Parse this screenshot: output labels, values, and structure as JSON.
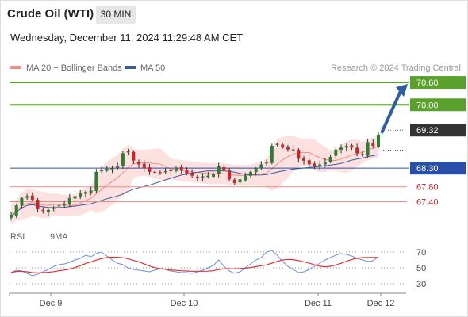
{
  "header": {
    "title": "Crude Oil (WTI)",
    "timeframe": "30 MIN",
    "datetime": "Wednesday, December 11, 2024 11:29:48 AM CET"
  },
  "legend": {
    "ma20_label": "MA 20 + Bollinger Bands",
    "ma50_label": "MA 50",
    "credit": "Research © 2024 Trading Central",
    "rsi_label": "RSI",
    "rsi_ma_label": "9MA"
  },
  "colors": {
    "up_candle": "#2e7d32",
    "down_candle": "#c62828",
    "bollinger_fill": "#fcd7d7",
    "ma20": "#f28b82",
    "ma50": "#3d5a99",
    "resistance": "#5aa02c",
    "support": "#2a4fa8",
    "support_light": "#f28b82",
    "current_price": "#333333",
    "forecast_arrow": "#2f5d9e",
    "rsi": "#6a8fe0",
    "rsi_ma": "#e03030"
  },
  "chart_data": {
    "type": "candlestick",
    "instrument": "Crude Oil (WTI)",
    "interval": "30 MIN",
    "x_ticks": [
      "Dec 9",
      "Dec 10",
      "Dec 11",
      "Dec 12"
    ],
    "ylim": [
      66.9,
      70.75
    ],
    "close_path": [
      67.05,
      67.3,
      67.5,
      67.55,
      67.45,
      67.2,
      67.15,
      67.18,
      67.25,
      67.3,
      67.35,
      67.5,
      67.55,
      67.62,
      67.66,
      67.7,
      68.2,
      68.25,
      68.28,
      68.3,
      68.35,
      68.7,
      68.75,
      68.5,
      68.4,
      68.3,
      68.2,
      68.2,
      68.18,
      68.22,
      68.22,
      68.3,
      68.25,
      68.15,
      68.1,
      68.05,
      68.08,
      68.1,
      68.15,
      68.35,
      68.25,
      68.0,
      67.9,
      68.0,
      68.1,
      68.2,
      68.3,
      68.4,
      68.45,
      68.9,
      68.95,
      68.85,
      68.8,
      68.8,
      68.55,
      68.5,
      68.4,
      68.35,
      68.4,
      68.45,
      68.6,
      68.8,
      68.85,
      68.9,
      68.85,
      68.7,
      68.65,
      69.0,
      68.9,
      69.2
    ],
    "levels": {
      "resistance": [
        70.6,
        70.0
      ],
      "current": 69.32,
      "support": [
        68.3,
        67.8,
        67.4
      ]
    },
    "forecast_target": 70.6,
    "rsi": {
      "ylim": [
        20,
        80
      ],
      "ticks": [
        70,
        50,
        30
      ],
      "values": [
        44,
        47,
        46,
        43,
        40,
        42,
        45,
        48,
        52,
        54,
        55,
        57,
        60,
        62,
        66,
        64,
        68,
        70,
        65,
        60,
        56,
        54,
        50,
        48,
        47,
        46,
        45,
        47,
        49,
        48,
        46,
        45,
        44,
        44,
        43,
        45,
        47,
        50,
        53,
        60,
        52,
        46,
        43,
        45,
        50,
        55,
        60,
        63,
        70,
        72,
        66,
        58,
        52,
        48,
        44,
        45,
        48,
        52,
        56,
        60,
        63,
        66,
        68,
        67,
        65,
        62,
        60,
        58,
        59,
        64
      ]
    }
  }
}
